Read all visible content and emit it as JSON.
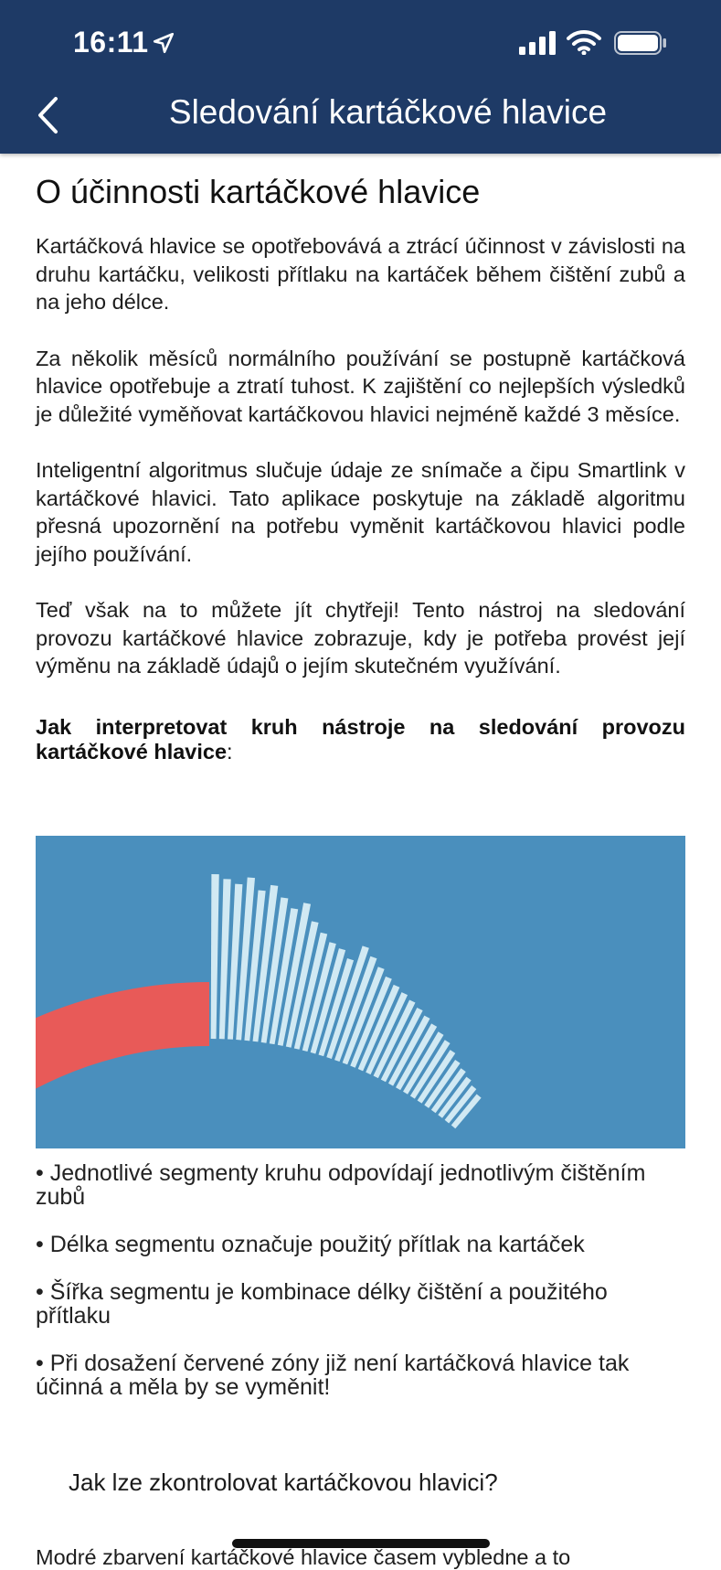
{
  "status": {
    "time": "16:11"
  },
  "nav": {
    "title": "Sledování kartáčkové hlavice"
  },
  "article": {
    "heading": "O účinnosti kartáčkové hlavice",
    "paragraphs": [
      "Kartáčková hlavice se opotřebovává a ztrácí účinnost v závislosti na druhu kartáčku, velikosti přítlaku na kartáček během čištění zubů a na jeho délce.",
      "Za několik měsíců normálního používání se postupně kartáčková hlavice opotřebuje a ztratí tuhost. K zajištění co nejlepších výsledků je důležité vyměňovat kartáčkovou hlavici nejméně každé 3 měsíce.",
      "Inteligentní algoritmus slučuje údaje ze snímače a čipu Smartlink v kartáčkové hlavici. Tato aplikace poskytuje na základě algoritmu přesná upozornění na potřebu vyměnit kartáčkovou hlavici podle jejího používání.",
      "Teď však na to můžete jít chytřeji! Tento nástroj na sledování provozu kartáčkové hlavice zobrazuje, kdy je potřeba provést její výměnu na základě údajů o jejím skutečném využívání."
    ],
    "interpret_heading": "Jak interpretovat kruh nástroje na sledování provozu kartáčkové hlavice",
    "interpret_colon": ":"
  },
  "illustration": {
    "background_color": "#4a8fbd",
    "red_zone_color": "#e85a58",
    "segment_color": "#d8eef5"
  },
  "bullets": [
    "• Jednotlivé segmenty kruhu odpovídají jednotlivým čištěním zubů",
    "• Délka segmentu označuje použitý přítlak na kartáček",
    "• Šířka segmentu je kombinace délky čištění a použitého přítlaku",
    "• Při dosažení červené zóny již není kartáčková hlavice tak účinná a měla by se vyměnit!"
  ],
  "accordion": {
    "title": "Jak lze zkontrolovat kartáčkovou hlavici?"
  },
  "cut_text": "Modré zbarvení kartáčkové hlavice časem vybledne a to"
}
